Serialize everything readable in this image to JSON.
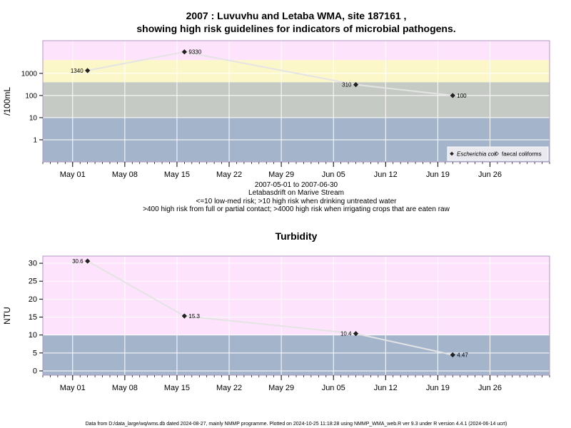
{
  "chart_data": [
    {
      "type": "scatter",
      "title_line1": "2007 : Luvuvhu and Letaba WMA, site 187161 ,",
      "title_line2": "showing high risk guidelines for indicators of microbial pathogens.",
      "ylabel": "/100mL",
      "y_scale": "log",
      "ylim": [
        0.1,
        30000
      ],
      "xlim": [
        "2007-04-27",
        "2007-07-04"
      ],
      "y_ticks": [
        {
          "v": 1,
          "label": "1"
        },
        {
          "v": 10,
          "label": "10"
        },
        {
          "v": 100,
          "label": "100"
        },
        {
          "v": 1000,
          "label": "1000"
        }
      ],
      "x_ticks": [
        {
          "date": "2007-05-01",
          "label": "May 01"
        },
        {
          "date": "2007-05-08",
          "label": "May 08"
        },
        {
          "date": "2007-05-15",
          "label": "May 15"
        },
        {
          "date": "2007-05-22",
          "label": "May 22"
        },
        {
          "date": "2007-05-29",
          "label": "May 29"
        },
        {
          "date": "2007-06-05",
          "label": "Jun 05"
        },
        {
          "date": "2007-06-12",
          "label": "Jun 12"
        },
        {
          "date": "2007-06-19",
          "label": "Jun 19"
        },
        {
          "date": "2007-06-26",
          "label": "Jun 26"
        }
      ],
      "bands": [
        {
          "from": 0.1,
          "to": 10,
          "color": "#a3b4cb"
        },
        {
          "from": 10,
          "to": 400,
          "color": "#c5cbc4"
        },
        {
          "from": 400,
          "to": 4000,
          "color": "#fcf7c8"
        },
        {
          "from": 4000,
          "to": 30000,
          "color": "#fde3fb"
        }
      ],
      "series": [
        {
          "name": "Escherichia coli",
          "points": [
            {
              "x": "2007-05-03",
              "y": 1340,
              "label": "1340",
              "label_side": "left"
            },
            {
              "x": "2007-05-16",
              "y": 9330,
              "label": "9330",
              "label_side": "right"
            },
            {
              "x": "2007-06-08",
              "y": 310,
              "label": "310",
              "label_side": "left"
            },
            {
              "x": "2007-06-21",
              "y": 100,
              "label": "100",
              "label_side": "right"
            }
          ]
        }
      ],
      "legend": {
        "position": "bottom-right",
        "entries": [
          {
            "label": "Escherichia coli",
            "marker": "filled-diamond",
            "italic": true
          },
          {
            "label": "faecal coliforms",
            "marker": "open-diamond",
            "italic": false
          }
        ]
      },
      "caption_lines": [
        "2007-05-01 to 2007-06-30",
        "Letabasdrift on Marive Stream",
        "<=10 low-med risk; >10 high risk when drinking untreated water",
        ">400 high risk from full or partial contact; >4000 high risk when irrigating crops that are eaten raw"
      ]
    },
    {
      "type": "scatter",
      "title": "Turbidity",
      "ylabel": "NTU",
      "y_scale": "linear",
      "ylim": [
        -1.2,
        32
      ],
      "xlim": [
        "2007-04-27",
        "2007-07-04"
      ],
      "y_ticks": [
        {
          "v": 0,
          "label": "0"
        },
        {
          "v": 5,
          "label": "5"
        },
        {
          "v": 10,
          "label": "10"
        },
        {
          "v": 15,
          "label": "15"
        },
        {
          "v": 20,
          "label": "20"
        },
        {
          "v": 25,
          "label": "25"
        },
        {
          "v": 30,
          "label": "30"
        }
      ],
      "x_ticks": [
        {
          "date": "2007-05-01",
          "label": "May 01"
        },
        {
          "date": "2007-05-08",
          "label": "May 08"
        },
        {
          "date": "2007-05-15",
          "label": "May 15"
        },
        {
          "date": "2007-05-22",
          "label": "May 22"
        },
        {
          "date": "2007-05-29",
          "label": "May 29"
        },
        {
          "date": "2007-06-05",
          "label": "Jun 05"
        },
        {
          "date": "2007-06-12",
          "label": "Jun 12"
        },
        {
          "date": "2007-06-19",
          "label": "Jun 19"
        },
        {
          "date": "2007-06-26",
          "label": "Jun 26"
        }
      ],
      "bands": [
        {
          "from": -1.2,
          "to": 10,
          "color": "#a3b4cb"
        },
        {
          "from": 10,
          "to": 32,
          "color": "#fde3fb"
        }
      ],
      "series": [
        {
          "name": "",
          "points": [
            {
              "x": "2007-05-03",
              "y": 30.6,
              "label": "30.6",
              "label_side": "left"
            },
            {
              "x": "2007-05-16",
              "y": 15.3,
              "label": "15.3",
              "label_side": "right"
            },
            {
              "x": "2007-06-08",
              "y": 10.4,
              "label": "10.4",
              "label_side": "left"
            },
            {
              "x": "2007-06-21",
              "y": 4.47,
              "label": "4.47",
              "label_side": "right"
            }
          ]
        }
      ]
    }
  ],
  "footer": "Data from D:/data_large/wq/wms.db dated 2024-08-27, mainly NMMP programme. Plotted on 2024-10-25 11:18:28 using NMMP_WMA_web.R ver 9.3 under R version 4.4.1 (2024-06-14 ucrt)"
}
